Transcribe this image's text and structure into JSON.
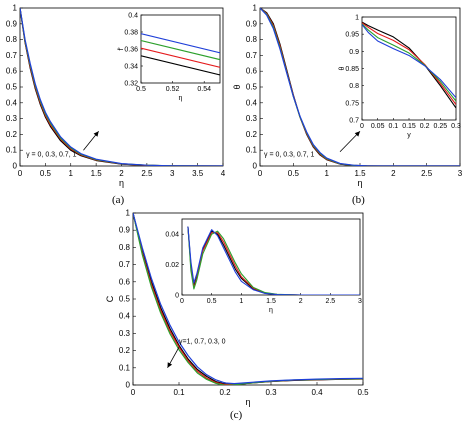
{
  "panel_labels": [
    "(a)",
    "(b)",
    "(c)"
  ],
  "colors": {
    "black": "#000000",
    "red": "#e41a1c",
    "green": "#2ca02c",
    "blue": "#1f3fd8"
  },
  "chart_data": [
    {
      "id": "a",
      "type": "line",
      "xlabel": "η",
      "ylabel": "f'",
      "xlim": [
        0,
        4
      ],
      "ylim": [
        0,
        1
      ],
      "xticks": [
        "0",
        "0.5",
        "1",
        "1.5",
        "2",
        "2.5",
        "3",
        "3.5",
        "4"
      ],
      "yticks": [
        "0",
        "0.1",
        "0.2",
        "0.3",
        "0.4",
        "0.5",
        "0.6",
        "0.7",
        "0.8",
        "0.9",
        "1"
      ],
      "annotation": "γ = 0, 0.3, 0.7, 1",
      "series": [
        {
          "color": "black",
          "x": [
            0,
            0.1,
            0.2,
            0.3,
            0.4,
            0.5,
            0.6,
            0.8,
            1,
            1.2,
            1.5,
            2,
            2.5,
            3,
            4
          ],
          "y": [
            1,
            0.78,
            0.62,
            0.49,
            0.39,
            0.31,
            0.25,
            0.16,
            0.1,
            0.065,
            0.035,
            0.012,
            0.004,
            0.001,
            0
          ]
        },
        {
          "color": "red",
          "x": [
            0,
            0.1,
            0.2,
            0.3,
            0.4,
            0.5,
            0.6,
            0.8,
            1,
            1.2,
            1.5,
            2,
            2.5,
            3,
            4
          ],
          "y": [
            1,
            0.785,
            0.63,
            0.5,
            0.4,
            0.32,
            0.26,
            0.17,
            0.108,
            0.07,
            0.038,
            0.013,
            0.004,
            0.001,
            0
          ]
        },
        {
          "color": "green",
          "x": [
            0,
            0.1,
            0.2,
            0.3,
            0.4,
            0.5,
            0.6,
            0.8,
            1,
            1.2,
            1.5,
            2,
            2.5,
            3,
            4
          ],
          "y": [
            1,
            0.79,
            0.64,
            0.51,
            0.41,
            0.33,
            0.27,
            0.176,
            0.114,
            0.074,
            0.04,
            0.014,
            0.005,
            0.001,
            0
          ]
        },
        {
          "color": "blue",
          "x": [
            0,
            0.1,
            0.2,
            0.3,
            0.4,
            0.5,
            0.6,
            0.8,
            1,
            1.2,
            1.5,
            2,
            2.5,
            3,
            4
          ],
          "y": [
            1,
            0.8,
            0.65,
            0.52,
            0.42,
            0.34,
            0.28,
            0.184,
            0.12,
            0.078,
            0.043,
            0.015,
            0.005,
            0.001,
            0
          ]
        }
      ],
      "inset": {
        "xlabel": "η",
        "ylabel": "f'",
        "xlim": [
          0.5,
          0.55
        ],
        "ylim": [
          0.32,
          0.4
        ],
        "xticks": [
          "0.5",
          "0.52",
          "0.54"
        ],
        "yticks": [
          "0.32",
          "0.34",
          "0.36",
          "0.38",
          "0.4"
        ],
        "series": [
          {
            "color": "black",
            "x": [
              0.5,
              0.56
            ],
            "y": [
              0.352,
              0.325
            ]
          },
          {
            "color": "red",
            "x": [
              0.5,
              0.56
            ],
            "y": [
              0.361,
              0.334
            ]
          },
          {
            "color": "green",
            "x": [
              0.5,
              0.56
            ],
            "y": [
              0.37,
              0.343
            ]
          },
          {
            "color": "blue",
            "x": [
              0.5,
              0.56
            ],
            "y": [
              0.378,
              0.351
            ]
          }
        ]
      }
    },
    {
      "id": "b",
      "type": "line",
      "xlabel": "η",
      "ylabel": "θ",
      "xlim": [
        0,
        3
      ],
      "ylim": [
        0,
        1
      ],
      "xticks": [
        "0",
        "0.5",
        "1",
        "1.5",
        "2",
        "2.5",
        "3"
      ],
      "yticks": [
        "0",
        "0.1",
        "0.2",
        "0.3",
        "0.4",
        "0.5",
        "0.6",
        "0.7",
        "0.8",
        "0.9",
        "1"
      ],
      "annotation": "γ = 0, 0.3, 0.7, 1",
      "series": [
        {
          "color": "black",
          "x": [
            0,
            0.1,
            0.2,
            0.3,
            0.4,
            0.5,
            0.6,
            0.7,
            0.8,
            0.9,
            1,
            1.2,
            1.4,
            1.6,
            2,
            3
          ],
          "y": [
            1,
            0.97,
            0.9,
            0.77,
            0.61,
            0.45,
            0.31,
            0.2,
            0.12,
            0.07,
            0.04,
            0.012,
            0.003,
            0.001,
            0,
            0
          ]
        },
        {
          "color": "red",
          "x": [
            0,
            0.1,
            0.2,
            0.3,
            0.4,
            0.5,
            0.6,
            0.7,
            0.8,
            0.9,
            1,
            1.2,
            1.4,
            1.6,
            2,
            3
          ],
          "y": [
            1,
            0.965,
            0.89,
            0.76,
            0.6,
            0.445,
            0.31,
            0.205,
            0.125,
            0.075,
            0.043,
            0.013,
            0.004,
            0.001,
            0,
            0
          ]
        },
        {
          "color": "green",
          "x": [
            0,
            0.1,
            0.2,
            0.3,
            0.4,
            0.5,
            0.6,
            0.7,
            0.8,
            0.9,
            1,
            1.2,
            1.4,
            1.6,
            2,
            3
          ],
          "y": [
            1,
            0.96,
            0.88,
            0.75,
            0.595,
            0.44,
            0.31,
            0.21,
            0.13,
            0.08,
            0.046,
            0.014,
            0.004,
            0.001,
            0,
            0
          ]
        },
        {
          "color": "blue",
          "x": [
            0,
            0.1,
            0.2,
            0.3,
            0.4,
            0.5,
            0.6,
            0.7,
            0.8,
            0.9,
            1,
            1.2,
            1.4,
            1.6,
            2,
            3
          ],
          "y": [
            1,
            0.955,
            0.87,
            0.74,
            0.59,
            0.44,
            0.315,
            0.215,
            0.135,
            0.085,
            0.05,
            0.016,
            0.005,
            0.001,
            0,
            0
          ]
        }
      ],
      "inset": {
        "xlabel": "y",
        "ylabel": "θ",
        "xlim": [
          0,
          0.3
        ],
        "ylim": [
          0.7,
          1
        ],
        "xticks": [
          "0",
          "0.05",
          "0.1",
          "0.15",
          "0.2",
          "0.25",
          "0.3"
        ],
        "yticks": [
          "0.7",
          "0.75",
          "0.8",
          "0.85",
          "0.9",
          "0.95",
          "1"
        ],
        "series": [
          {
            "color": "black",
            "x": [
              0,
              0.02,
              0.05,
              0.1,
              0.15,
              0.2,
              0.25,
              0.3
            ],
            "y": [
              0.985,
              0.975,
              0.962,
              0.942,
              0.91,
              0.86,
              0.8,
              0.735
            ]
          },
          {
            "color": "red",
            "x": [
              0,
              0.02,
              0.05,
              0.1,
              0.15,
              0.2,
              0.25,
              0.3
            ],
            "y": [
              0.983,
              0.97,
              0.952,
              0.932,
              0.905,
              0.862,
              0.806,
              0.745
            ]
          },
          {
            "color": "green",
            "x": [
              0,
              0.02,
              0.05,
              0.1,
              0.15,
              0.2,
              0.25,
              0.3
            ],
            "y": [
              0.98,
              0.962,
              0.94,
              0.918,
              0.895,
              0.86,
              0.812,
              0.755
            ]
          },
          {
            "color": "blue",
            "x": [
              0,
              0.02,
              0.05,
              0.1,
              0.15,
              0.2,
              0.25,
              0.3
            ],
            "y": [
              0.978,
              0.955,
              0.93,
              0.908,
              0.888,
              0.858,
              0.818,
              0.765
            ]
          }
        ]
      }
    },
    {
      "id": "c",
      "type": "line",
      "xlabel": "η",
      "ylabel": "C",
      "xlim": [
        0,
        0.5
      ],
      "ylim": [
        0,
        1
      ],
      "xticks": [
        "0",
        "0.1",
        "0.2",
        "0.3",
        "0.4",
        "0.5"
      ],
      "yticks": [
        "0",
        "0.1",
        "0.2",
        "0.3",
        "0.4",
        "0.5",
        "0.6",
        "0.7",
        "0.8",
        "0.9",
        "1"
      ],
      "annotation": "γ=1, 0.7, 0.3, 0",
      "series": [
        {
          "color": "black",
          "x": [
            0,
            0.02,
            0.04,
            0.06,
            0.08,
            0.1,
            0.12,
            0.14,
            0.16,
            0.18,
            0.2,
            0.22,
            0.25,
            0.3,
            0.35,
            0.4,
            0.45,
            0.5
          ],
          "y": [
            1,
            0.78,
            0.6,
            0.45,
            0.33,
            0.23,
            0.15,
            0.09,
            0.05,
            0.02,
            0.005,
            0.003,
            0.01,
            0.02,
            0.027,
            0.03,
            0.033,
            0.035
          ]
        },
        {
          "color": "red",
          "x": [
            0,
            0.02,
            0.04,
            0.06,
            0.08,
            0.1,
            0.12,
            0.14,
            0.16,
            0.18,
            0.2,
            0.22,
            0.25,
            0.3,
            0.35,
            0.4,
            0.45,
            0.5
          ],
          "y": [
            1,
            0.77,
            0.585,
            0.435,
            0.315,
            0.22,
            0.14,
            0.08,
            0.04,
            0.015,
            0.002,
            0.002,
            0.01,
            0.021,
            0.028,
            0.031,
            0.034,
            0.036
          ]
        },
        {
          "color": "green",
          "x": [
            0,
            0.02,
            0.04,
            0.06,
            0.08,
            0.1,
            0.12,
            0.14,
            0.16,
            0.18,
            0.2,
            0.22,
            0.25,
            0.3,
            0.35,
            0.4,
            0.45,
            0.5
          ],
          "y": [
            1,
            0.76,
            0.57,
            0.42,
            0.3,
            0.205,
            0.13,
            0.07,
            0.033,
            0.01,
            -0.002,
            0.001,
            0.01,
            0.022,
            0.029,
            0.032,
            0.035,
            0.037
          ]
        },
        {
          "color": "blue",
          "x": [
            0,
            0.02,
            0.04,
            0.06,
            0.08,
            0.1,
            0.12,
            0.14,
            0.16,
            0.18,
            0.2,
            0.22,
            0.25,
            0.3,
            0.35,
            0.4,
            0.45,
            0.5
          ],
          "y": [
            1,
            0.8,
            0.62,
            0.47,
            0.35,
            0.25,
            0.17,
            0.105,
            0.06,
            0.03,
            0.012,
            0.008,
            0.014,
            0.024,
            0.03,
            0.034,
            0.037,
            0.039
          ]
        }
      ],
      "inset": {
        "xlabel": "η",
        "ylabel": "",
        "xlim": [
          0,
          3
        ],
        "ylim": [
          0,
          0.05
        ],
        "xticks": [
          "0",
          "0.5",
          "1",
          "1.5",
          "2",
          "2.5",
          "3"
        ],
        "yticks": [
          "0",
          "0.02",
          "0.04"
        ],
        "series": [
          {
            "color": "black",
            "x": [
              0.1,
              0.15,
              0.2,
              0.25,
              0.35,
              0.5,
              0.6,
              0.7,
              0.8,
              0.9,
              1,
              1.2,
              1.4,
              1.6,
              2,
              2.5,
              3
            ],
            "y": [
              0.045,
              0.02,
              0.006,
              0.012,
              0.03,
              0.042,
              0.04,
              0.033,
              0.025,
              0.017,
              0.011,
              0.004,
              0.0012,
              0.0003,
              0,
              0,
              0
            ]
          },
          {
            "color": "red",
            "x": [
              0.1,
              0.15,
              0.2,
              0.25,
              0.35,
              0.5,
              0.6,
              0.7,
              0.8,
              0.9,
              1,
              1.2,
              1.4,
              1.6,
              2,
              2.5,
              3
            ],
            "y": [
              0.045,
              0.018,
              0.005,
              0.011,
              0.029,
              0.041,
              0.041,
              0.035,
              0.027,
              0.019,
              0.012,
              0.0045,
              0.0014,
              0.0004,
              0,
              0,
              0
            ]
          },
          {
            "color": "green",
            "x": [
              0.1,
              0.15,
              0.2,
              0.25,
              0.35,
              0.5,
              0.6,
              0.7,
              0.8,
              0.9,
              1,
              1.2,
              1.4,
              1.6,
              2,
              2.5,
              3
            ],
            "y": [
              0.045,
              0.016,
              0.004,
              0.01,
              0.027,
              0.04,
              0.042,
              0.037,
              0.029,
              0.021,
              0.014,
              0.005,
              0.0016,
              0.0005,
              0,
              0,
              0
            ]
          },
          {
            "color": "blue",
            "x": [
              0.1,
              0.15,
              0.2,
              0.25,
              0.35,
              0.5,
              0.6,
              0.7,
              0.8,
              0.9,
              1,
              1.2,
              1.4,
              1.6,
              2,
              2.5,
              3
            ],
            "y": [
              0.045,
              0.022,
              0.008,
              0.014,
              0.031,
              0.043,
              0.039,
              0.031,
              0.023,
              0.015,
              0.009,
              0.0035,
              0.001,
              0.0003,
              0,
              0,
              0
            ]
          }
        ]
      }
    }
  ]
}
